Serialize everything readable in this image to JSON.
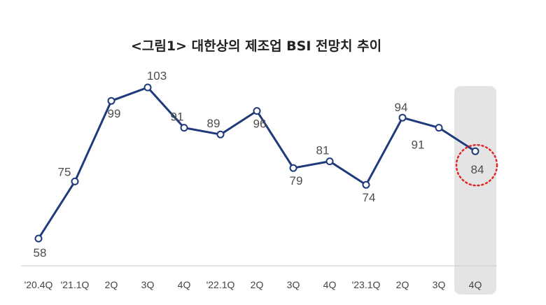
{
  "chart_data": {
    "type": "line",
    "title": "<그림1> 대한상의 제조업 BSI 전망치 추이",
    "categories": [
      "'20.4Q",
      "'21.1Q",
      "2Q",
      "3Q",
      "4Q",
      "'22.1Q",
      "2Q",
      "3Q",
      "4Q",
      "'23.1Q",
      "2Q",
      "3Q",
      "4Q"
    ],
    "values": [
      58,
      75,
      99,
      103,
      91,
      89,
      96,
      79,
      81,
      74,
      94,
      91,
      84
    ],
    "ylim": [
      40,
      110
    ],
    "grid": false,
    "legend": "none",
    "highlight_index": 12,
    "colors": {
      "line": "#1f3a7a",
      "marker_fill": "#ffffff",
      "highlight_band": "#e4e4e4",
      "highlight_circle": "#e0262b",
      "axis": "#cccccc"
    }
  }
}
